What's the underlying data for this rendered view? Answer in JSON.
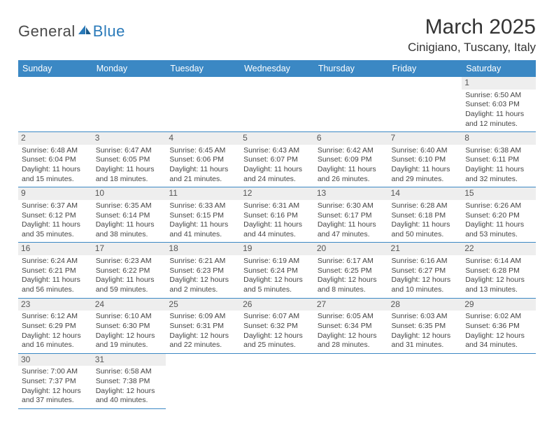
{
  "brand": {
    "left": "General",
    "right": "Blue"
  },
  "title": "March 2025",
  "location": "Cinigiano, Tuscany, Italy",
  "colors": {
    "header_bg": "#3b88c4",
    "header_text": "#ffffff",
    "border": "#3b88c4",
    "daynum_bg": "#eeeeee",
    "text": "#444444",
    "brand_blue": "#2a7ab9",
    "brand_gray": "#4a4a4a"
  },
  "day_headers": [
    "Sunday",
    "Monday",
    "Tuesday",
    "Wednesday",
    "Thursday",
    "Friday",
    "Saturday"
  ],
  "weeks": [
    [
      null,
      null,
      null,
      null,
      null,
      null,
      {
        "n": "1",
        "sr": "6:50 AM",
        "ss": "6:03 PM",
        "dh": "11",
        "dm": "12"
      }
    ],
    [
      {
        "n": "2",
        "sr": "6:48 AM",
        "ss": "6:04 PM",
        "dh": "11",
        "dm": "15"
      },
      {
        "n": "3",
        "sr": "6:47 AM",
        "ss": "6:05 PM",
        "dh": "11",
        "dm": "18"
      },
      {
        "n": "4",
        "sr": "6:45 AM",
        "ss": "6:06 PM",
        "dh": "11",
        "dm": "21"
      },
      {
        "n": "5",
        "sr": "6:43 AM",
        "ss": "6:07 PM",
        "dh": "11",
        "dm": "24"
      },
      {
        "n": "6",
        "sr": "6:42 AM",
        "ss": "6:09 PM",
        "dh": "11",
        "dm": "26"
      },
      {
        "n": "7",
        "sr": "6:40 AM",
        "ss": "6:10 PM",
        "dh": "11",
        "dm": "29"
      },
      {
        "n": "8",
        "sr": "6:38 AM",
        "ss": "6:11 PM",
        "dh": "11",
        "dm": "32"
      }
    ],
    [
      {
        "n": "9",
        "sr": "6:37 AM",
        "ss": "6:12 PM",
        "dh": "11",
        "dm": "35"
      },
      {
        "n": "10",
        "sr": "6:35 AM",
        "ss": "6:14 PM",
        "dh": "11",
        "dm": "38"
      },
      {
        "n": "11",
        "sr": "6:33 AM",
        "ss": "6:15 PM",
        "dh": "11",
        "dm": "41"
      },
      {
        "n": "12",
        "sr": "6:31 AM",
        "ss": "6:16 PM",
        "dh": "11",
        "dm": "44"
      },
      {
        "n": "13",
        "sr": "6:30 AM",
        "ss": "6:17 PM",
        "dh": "11",
        "dm": "47"
      },
      {
        "n": "14",
        "sr": "6:28 AM",
        "ss": "6:18 PM",
        "dh": "11",
        "dm": "50"
      },
      {
        "n": "15",
        "sr": "6:26 AM",
        "ss": "6:20 PM",
        "dh": "11",
        "dm": "53"
      }
    ],
    [
      {
        "n": "16",
        "sr": "6:24 AM",
        "ss": "6:21 PM",
        "dh": "11",
        "dm": "56"
      },
      {
        "n": "17",
        "sr": "6:23 AM",
        "ss": "6:22 PM",
        "dh": "11",
        "dm": "59"
      },
      {
        "n": "18",
        "sr": "6:21 AM",
        "ss": "6:23 PM",
        "dh": "12",
        "dm": "2"
      },
      {
        "n": "19",
        "sr": "6:19 AM",
        "ss": "6:24 PM",
        "dh": "12",
        "dm": "5"
      },
      {
        "n": "20",
        "sr": "6:17 AM",
        "ss": "6:25 PM",
        "dh": "12",
        "dm": "8"
      },
      {
        "n": "21",
        "sr": "6:16 AM",
        "ss": "6:27 PM",
        "dh": "12",
        "dm": "10"
      },
      {
        "n": "22",
        "sr": "6:14 AM",
        "ss": "6:28 PM",
        "dh": "12",
        "dm": "13"
      }
    ],
    [
      {
        "n": "23",
        "sr": "6:12 AM",
        "ss": "6:29 PM",
        "dh": "12",
        "dm": "16"
      },
      {
        "n": "24",
        "sr": "6:10 AM",
        "ss": "6:30 PM",
        "dh": "12",
        "dm": "19"
      },
      {
        "n": "25",
        "sr": "6:09 AM",
        "ss": "6:31 PM",
        "dh": "12",
        "dm": "22"
      },
      {
        "n": "26",
        "sr": "6:07 AM",
        "ss": "6:32 PM",
        "dh": "12",
        "dm": "25"
      },
      {
        "n": "27",
        "sr": "6:05 AM",
        "ss": "6:34 PM",
        "dh": "12",
        "dm": "28"
      },
      {
        "n": "28",
        "sr": "6:03 AM",
        "ss": "6:35 PM",
        "dh": "12",
        "dm": "31"
      },
      {
        "n": "29",
        "sr": "6:02 AM",
        "ss": "6:36 PM",
        "dh": "12",
        "dm": "34"
      }
    ],
    [
      {
        "n": "30",
        "sr": "7:00 AM",
        "ss": "7:37 PM",
        "dh": "12",
        "dm": "37"
      },
      {
        "n": "31",
        "sr": "6:58 AM",
        "ss": "7:38 PM",
        "dh": "12",
        "dm": "40"
      },
      null,
      null,
      null,
      null,
      null
    ]
  ],
  "labels": {
    "sunrise": "Sunrise:",
    "sunset": "Sunset:",
    "daylight_pre": "Daylight:",
    "hours": "hours",
    "and": "and",
    "minutes": "minutes."
  }
}
